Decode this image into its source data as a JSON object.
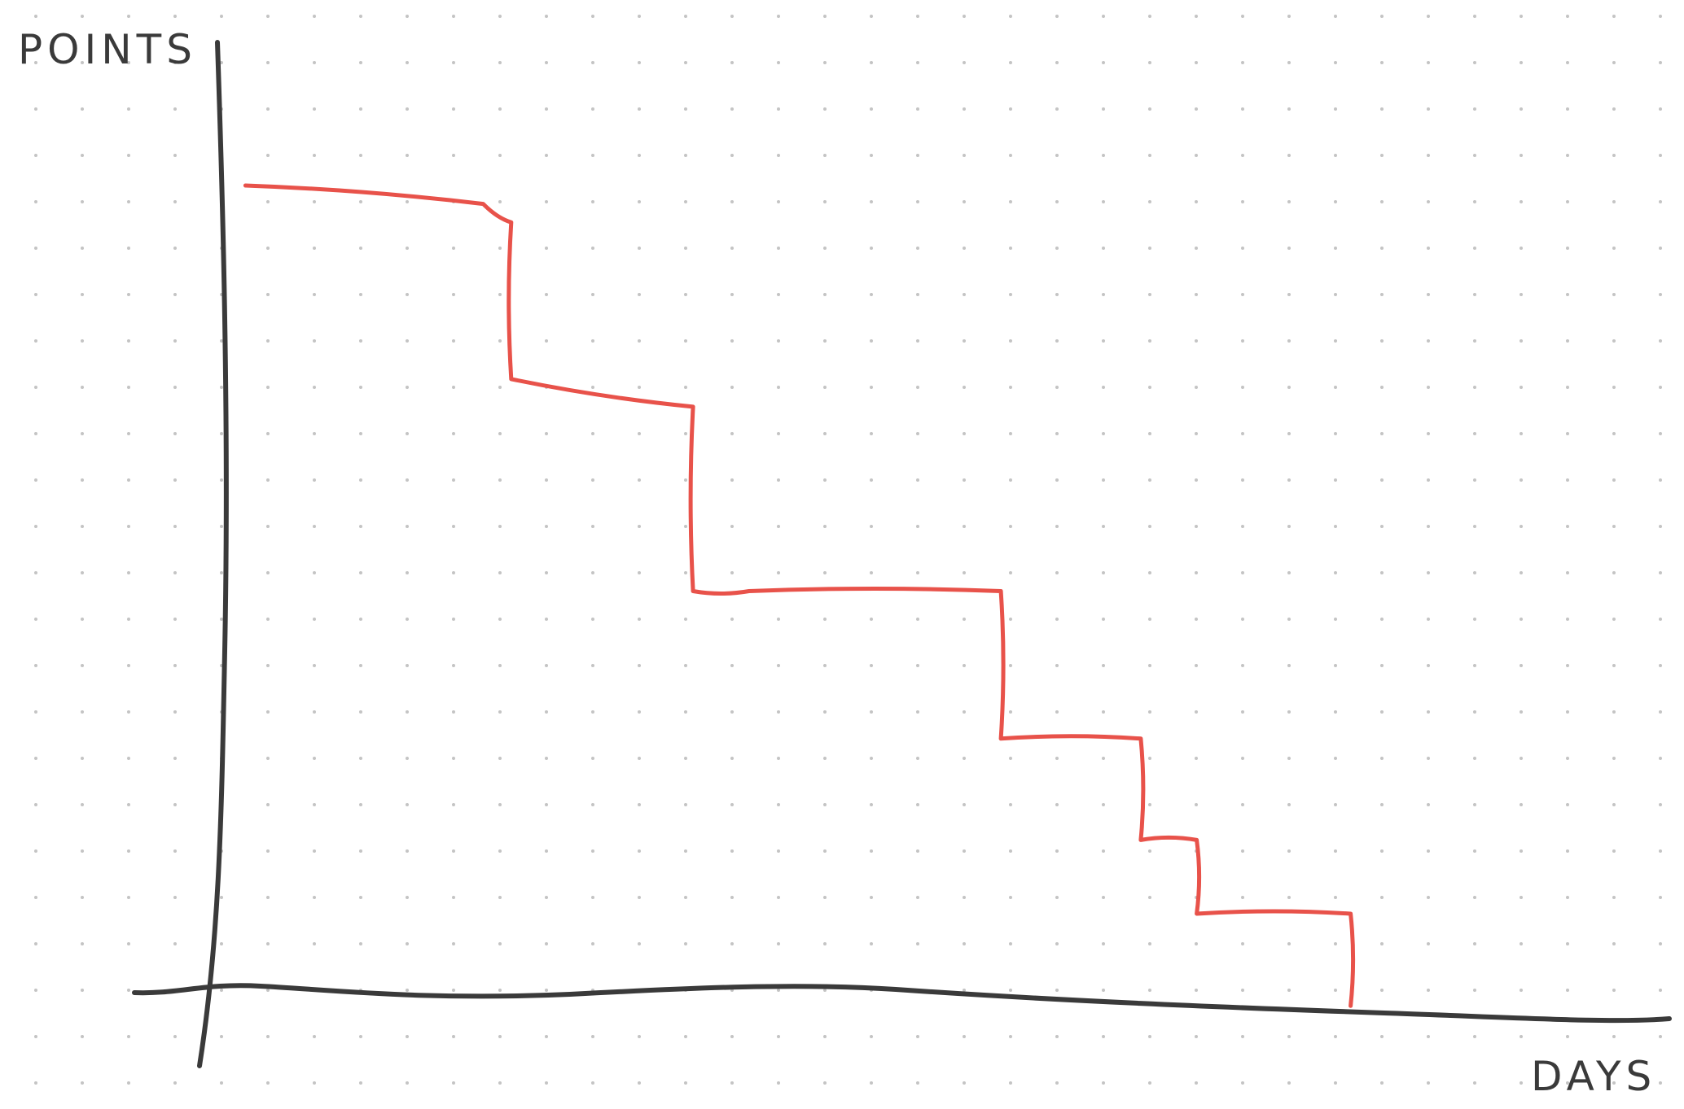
{
  "chart_data": {
    "type": "line",
    "style": "hand-drawn sketch on dotted grid paper",
    "xlabel": "DAYS",
    "ylabel": "POINTS",
    "grid": "dotted",
    "legend": "none",
    "xlim": [
      0,
      100
    ],
    "ylim": [
      0,
      100
    ],
    "series": [
      {
        "color": "#e8524a",
        "step_shape": "descending staircase",
        "points": [
          [
            2,
            88
          ],
          [
            19,
            86
          ],
          [
            21,
            84
          ],
          [
            21,
            67
          ],
          [
            34,
            64
          ],
          [
            34,
            44
          ],
          [
            38,
            44
          ],
          [
            56,
            44
          ],
          [
            56,
            28
          ],
          [
            66,
            28
          ],
          [
            66,
            17
          ],
          [
            70,
            17
          ],
          [
            70,
            9
          ],
          [
            81,
            9
          ],
          [
            81,
            -1
          ]
        ]
      }
    ],
    "colors": {
      "axis": "#3a3a3a",
      "line": "#e8524a",
      "grid_dot": "#c4c4c4",
      "background": "#ffffff"
    }
  }
}
